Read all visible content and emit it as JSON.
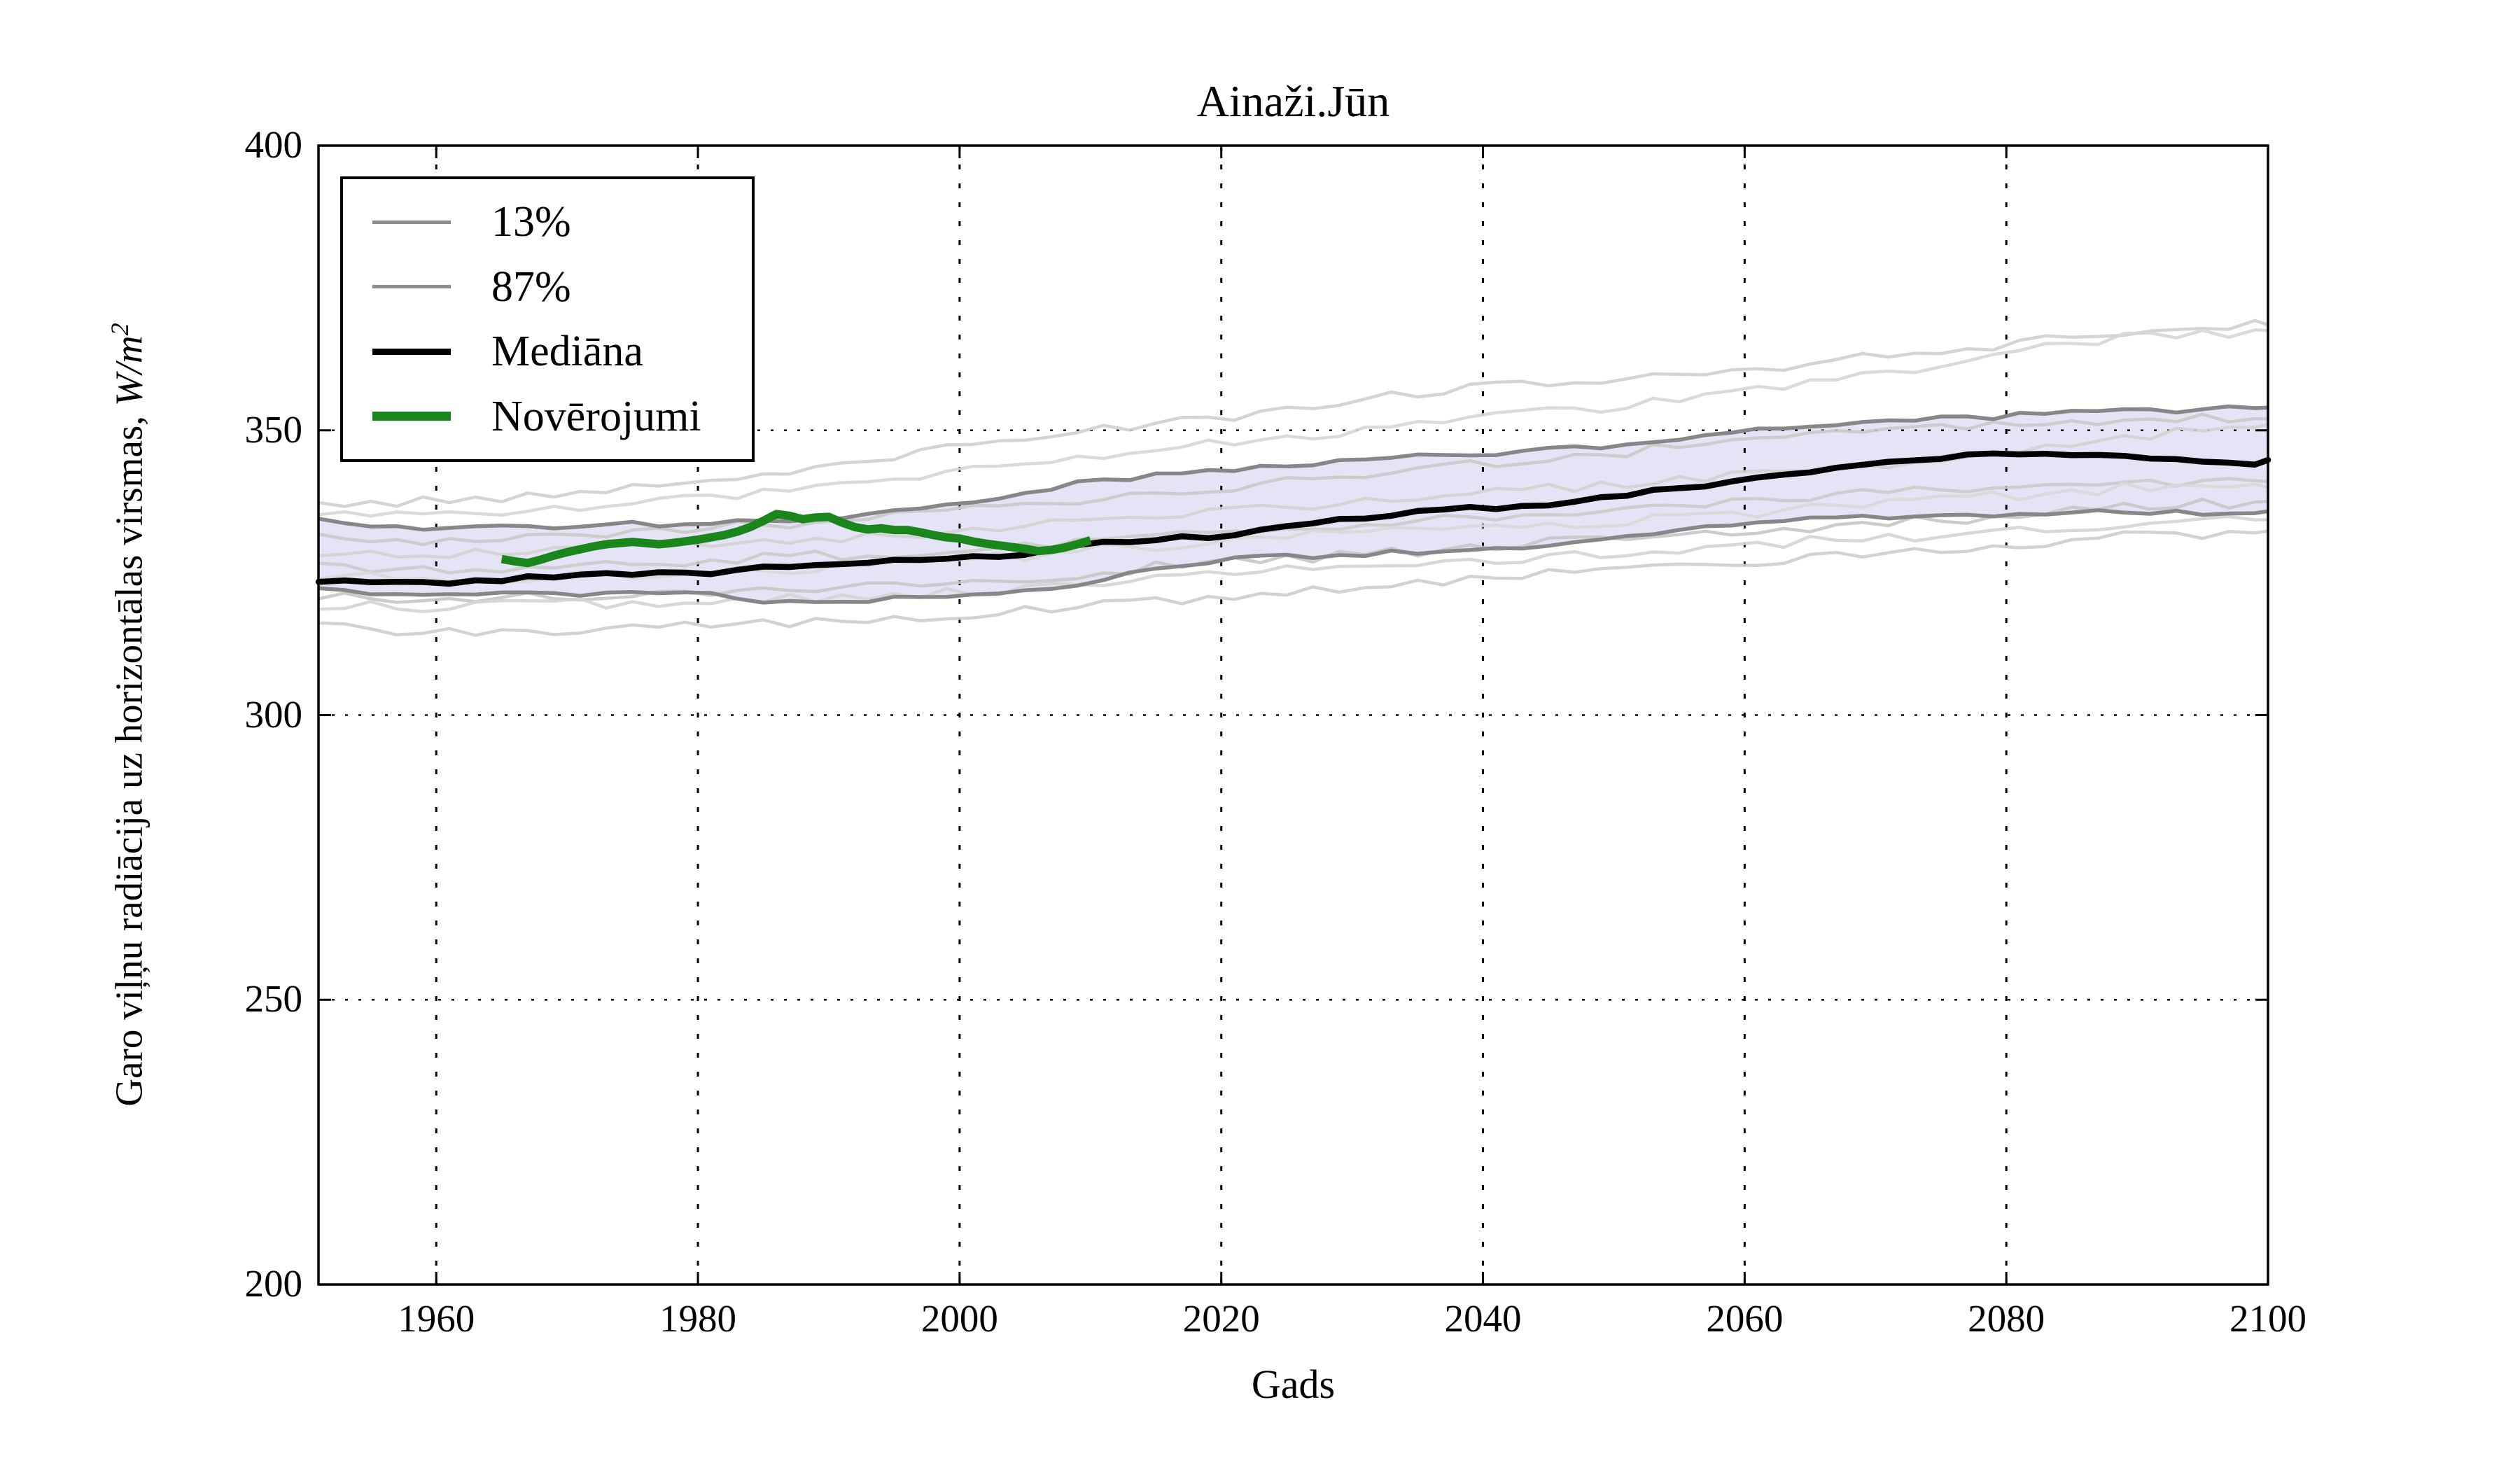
{
  "figure": {
    "title": "Ainaži.Jūn",
    "background_color": "#ffffff"
  },
  "axes": {
    "xlabel": "Gads",
    "ylabel_full": "Garo viļņu radiācija uz horizontālas virsmas, W/m²",
    "ylabel_prefix": "Garo viļņu radiācija uz horizontālas virsmas, ",
    "ylabel_math": "W/m",
    "ylabel_exponent": "2",
    "xlim": [
      1951,
      2100
    ],
    "ylim": [
      200,
      400
    ],
    "xticks": [
      1960,
      1980,
      2000,
      2020,
      2040,
      2060,
      2080,
      2100
    ],
    "yticks": [
      200,
      250,
      300,
      350,
      400
    ],
    "grid": true,
    "grid_style": "dotted",
    "spine_color": "#000000"
  },
  "legend": {
    "position": "upper left",
    "entries": [
      {
        "label": "13%",
        "color": "#8c8c8c",
        "thickness": 5
      },
      {
        "label": "87%",
        "color": "#8c8c8c",
        "thickness": 5
      },
      {
        "label": "Mediāna",
        "color": "#000000",
        "thickness": 9
      },
      {
        "label": "Novērojumi",
        "color": "#1a851a",
        "thickness": 13
      }
    ]
  },
  "chart_data": {
    "type": "line",
    "title": "Ainaži.Jūn",
    "xlabel": "Gads",
    "ylabel": "Garo viļņu radiācija uz horizontālas virsmas, W/m²",
    "xlim": [
      1951,
      2100
    ],
    "ylim": [
      200,
      400
    ],
    "xticks": [
      1960,
      1980,
      2000,
      2020,
      2040,
      2060,
      2080,
      2100
    ],
    "yticks": [
      200,
      250,
      300,
      350,
      400
    ],
    "grid": true,
    "legend_position": "upper left",
    "band": {
      "description": "shaded range between 13% and 87% percentiles",
      "fill_color": "#e4e4f6"
    },
    "percentile_13": {
      "name": "13%",
      "color": "#878787",
      "x": [
        1951,
        1955,
        1960,
        1965,
        1970,
        1975,
        1980,
        1985,
        1990,
        1995,
        2000,
        2005,
        2010,
        2015,
        2020,
        2025,
        2030,
        2035,
        2040,
        2045,
        2050,
        2055,
        2060,
        2065,
        2070,
        2075,
        2080,
        2085,
        2090,
        2095,
        2100
      ],
      "y": [
        322.0,
        321.6,
        321.5,
        321.2,
        321.0,
        321.5,
        321.3,
        319.8,
        319.4,
        320.6,
        320.8,
        321.8,
        323.5,
        325.5,
        327.5,
        327.8,
        328.2,
        328.8,
        329.2,
        330.0,
        331.0,
        332.2,
        333.5,
        334.2,
        334.6,
        335.0,
        335.2,
        335.5,
        335.6,
        335.6,
        335.8
      ]
    },
    "percentile_87": {
      "name": "87%",
      "color": "#878787",
      "x": [
        1951,
        1955,
        1960,
        1965,
        1970,
        1975,
        1980,
        1985,
        1990,
        1995,
        2000,
        2005,
        2010,
        2015,
        2020,
        2025,
        2030,
        2035,
        2040,
        2045,
        2050,
        2055,
        2060,
        2065,
        2070,
        2075,
        2080,
        2085,
        2090,
        2095,
        2100
      ],
      "y": [
        334.0,
        333.5,
        332.7,
        333.0,
        333.2,
        333.6,
        333.2,
        334.2,
        334.8,
        335.8,
        337.0,
        339.0,
        341.0,
        342.2,
        343.2,
        343.8,
        344.5,
        345.5,
        346.0,
        346.5,
        347.5,
        348.5,
        350.0,
        350.8,
        351.5,
        352.0,
        352.5,
        353.0,
        353.3,
        353.6,
        354.0
      ]
    },
    "median": {
      "name": "Mediāna",
      "color": "#000000",
      "x": [
        1951,
        1955,
        1960,
        1965,
        1970,
        1975,
        1980,
        1985,
        1990,
        1995,
        2000,
        2005,
        2010,
        2015,
        2020,
        2025,
        2030,
        2035,
        2040,
        2045,
        2050,
        2055,
        2060,
        2065,
        2070,
        2075,
        2080,
        2085,
        2090,
        2095,
        2098,
        2100
      ],
      "y": [
        323.5,
        323.0,
        323.2,
        323.8,
        324.3,
        325.0,
        324.7,
        325.8,
        326.8,
        327.0,
        327.6,
        328.2,
        330.0,
        330.8,
        331.6,
        333.0,
        334.3,
        335.8,
        336.3,
        336.8,
        338.3,
        339.8,
        341.0,
        342.8,
        344.3,
        345.3,
        345.8,
        345.8,
        345.4,
        344.8,
        343.6,
        344.8
      ]
    },
    "observations": {
      "name": "Novērojumi",
      "color": "#1a851a",
      "x_start": 1965,
      "x_step": 1,
      "y": [
        327.4,
        327.0,
        326.7,
        327.3,
        328.0,
        328.6,
        329.1,
        329.6,
        330.0,
        330.2,
        330.4,
        330.2,
        330.0,
        330.2,
        330.5,
        330.8,
        331.2,
        331.6,
        332.2,
        333.0,
        334.1,
        335.3,
        335.0,
        334.4,
        334.7,
        334.8,
        333.8,
        333.0,
        332.6,
        332.8,
        332.5,
        332.5,
        332.1,
        331.6,
        331.2,
        331.0,
        330.5,
        330.1,
        329.8,
        329.5,
        329.2,
        328.8,
        329.0,
        329.4,
        330.0,
        330.7
      ]
    },
    "ensemble_members": {
      "description": "individual model runs, light grey",
      "x": [
        1951,
        1960,
        1970,
        1980,
        1990,
        2000,
        2010,
        2020,
        2030,
        2040,
        2050,
        2060,
        2070,
        2080,
        2090,
        2100
      ],
      "series": [
        {
          "color": "#cfcfcf",
          "y": [
            337.0,
            337.5,
            339.0,
            341.0,
            344.0,
            347.0,
            350.0,
            352.0,
            355.5,
            358.0,
            359.0,
            360.5,
            363.0,
            365.0,
            367.5,
            368.5
          ]
        },
        {
          "color": "#d6d6d6",
          "y": [
            336.0,
            335.5,
            336.5,
            338.0,
            340.0,
            343.0,
            345.0,
            348.0,
            350.0,
            352.5,
            354.0,
            357.0,
            359.5,
            364.0,
            366.5,
            367.5
          ]
        },
        {
          "color": "#c9c9c9",
          "y": [
            331.0,
            330.5,
            331.5,
            333.0,
            334.0,
            336.0,
            338.0,
            340.0,
            342.0,
            344.0,
            346.0,
            348.0,
            350.0,
            351.5,
            352.0,
            352.0
          ]
        },
        {
          "color": "#d2d2d2",
          "y": [
            328.5,
            328.0,
            329.0,
            330.0,
            331.0,
            332.0,
            334.0,
            336.0,
            337.5,
            339.0,
            340.5,
            342.0,
            344.0,
            346.0,
            349.0,
            351.0
          ]
        },
        {
          "color": "#cbcbcb",
          "y": [
            326.0,
            325.5,
            326.0,
            327.0,
            328.0,
            329.0,
            330.5,
            332.0,
            333.5,
            335.0,
            336.0,
            337.5,
            339.0,
            340.0,
            341.0,
            341.0
          ]
        },
        {
          "color": "#d8d8d8",
          "y": [
            324.5,
            324.0,
            324.5,
            325.0,
            326.0,
            327.0,
            329.0,
            330.5,
            332.0,
            333.0,
            334.0,
            335.5,
            337.0,
            338.5,
            340.0,
            340.0
          ]
        },
        {
          "color": "#c6c6c6",
          "y": [
            321.0,
            320.5,
            321.0,
            321.5,
            322.0,
            323.0,
            325.0,
            327.0,
            328.0,
            329.5,
            331.0,
            332.0,
            333.5,
            335.0,
            336.5,
            337.5
          ]
        },
        {
          "color": "#d4d4d4",
          "y": [
            319.5,
            319.0,
            319.5,
            320.0,
            320.5,
            321.5,
            323.0,
            325.0,
            326.0,
            327.0,
            328.5,
            330.0,
            331.0,
            332.5,
            333.5,
            334.3
          ]
        },
        {
          "color": "#cdcdcd",
          "y": [
            315.5,
            314.5,
            315.0,
            315.5,
            316.5,
            317.5,
            319.0,
            321.0,
            322.5,
            324.0,
            325.5,
            327.0,
            328.5,
            330.0,
            331.5,
            332.3
          ]
        }
      ]
    }
  }
}
